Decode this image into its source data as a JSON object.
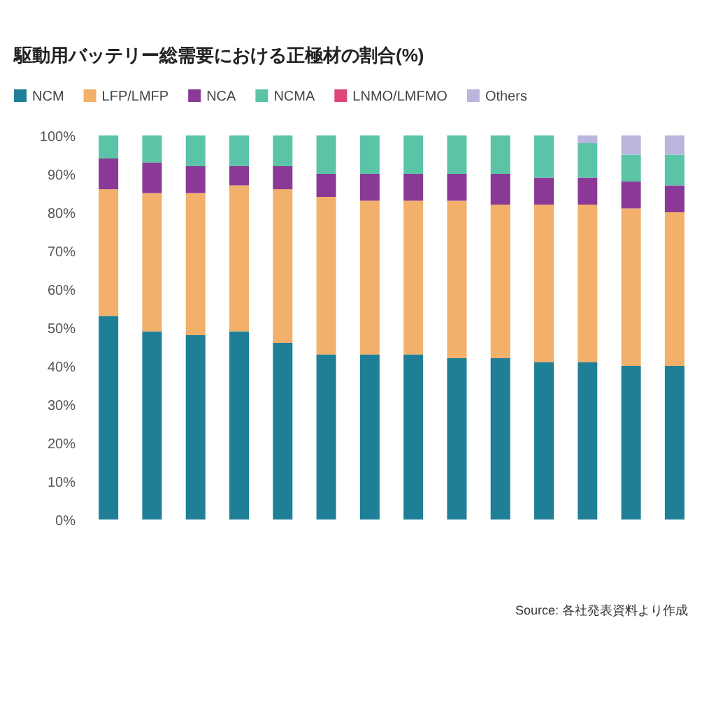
{
  "chart_data": {
    "type": "bar",
    "title": "駆動用バッテリー総需要における正極材の割合(%)",
    "stacked": true,
    "categories": [
      null,
      null,
      null,
      null,
      null,
      null,
      null,
      null,
      null,
      null,
      null,
      null,
      null,
      null
    ],
    "series": [
      {
        "name": "NCM",
        "color": "#1f7f97",
        "values": [
          53,
          49,
          48,
          49,
          46,
          43,
          43,
          43,
          42,
          42,
          41,
          41,
          40,
          40
        ]
      },
      {
        "name": "LFP/LMFP",
        "color": "#f2b06b",
        "values": [
          33,
          36,
          37,
          38,
          40,
          41,
          40,
          40,
          41,
          40,
          41,
          41,
          41,
          40
        ]
      },
      {
        "name": "NCA",
        "color": "#8a3a96",
        "values": [
          8,
          8,
          7,
          5,
          6,
          6,
          7,
          7,
          7,
          8,
          7,
          7,
          7,
          7
        ]
      },
      {
        "name": "NCMA",
        "color": "#5bc4a6",
        "values": [
          6,
          7,
          8,
          8,
          8,
          10,
          10,
          10,
          10,
          10,
          11,
          9,
          7,
          8
        ]
      },
      {
        "name": "LNMO/LMFMO",
        "color": "#e0457b",
        "values": [
          0,
          0,
          0,
          0,
          0,
          0,
          0,
          0,
          0,
          0,
          0,
          0,
          0,
          0
        ]
      },
      {
        "name": "Others",
        "color": "#b9b5dc",
        "values": [
          0,
          0,
          0,
          0,
          0,
          0,
          0,
          0,
          0,
          0,
          0,
          2,
          5,
          5
        ]
      }
    ],
    "ylim": [
      0,
      100
    ],
    "yticks": [
      {
        "value": 0,
        "label": "0%"
      },
      {
        "value": 10,
        "label": "10%"
      },
      {
        "value": 20,
        "label": "20%"
      },
      {
        "value": 30,
        "label": "30%"
      },
      {
        "value": 40,
        "label": "40%"
      },
      {
        "value": 50,
        "label": "50%"
      },
      {
        "value": 60,
        "label": "60%"
      },
      {
        "value": 70,
        "label": "70%"
      },
      {
        "value": 80,
        "label": "80%"
      },
      {
        "value": 90,
        "label": "90%"
      },
      {
        "value": 100,
        "label": "100%"
      }
    ],
    "grid": false,
    "legend": "top",
    "annotations": [
      "Source: 各社発表資料より作成"
    ]
  }
}
